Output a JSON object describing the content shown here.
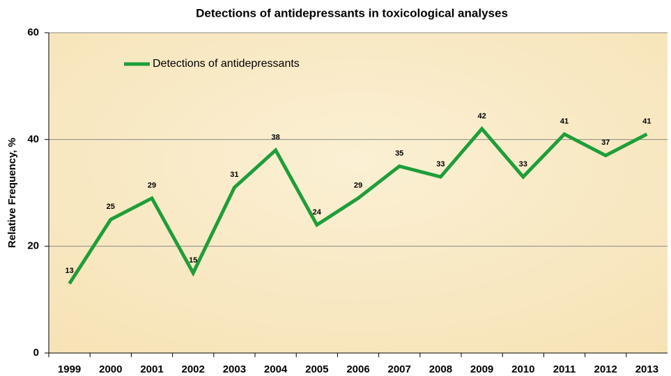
{
  "chart_data": {
    "type": "line",
    "title": "Detections of antidepressants in toxicological analyses",
    "y_label": "Relative Frequency, %",
    "categories": [
      "1999",
      "2000",
      "2001",
      "2002",
      "2003",
      "2004",
      "2005",
      "2006",
      "2007",
      "2008",
      "2009",
      "2010",
      "2011",
      "2012",
      "2013"
    ],
    "series": [
      {
        "name": "Detections of antidepressants",
        "color": "#1e9e3a",
        "values": [
          13,
          25,
          29,
          15,
          31,
          38,
          24,
          29,
          35,
          33,
          42,
          33,
          41,
          37,
          41
        ]
      }
    ],
    "ylim": [
      0,
      60
    ],
    "yticks": [
      0,
      20,
      40,
      60
    ],
    "grid": true,
    "legend": "top-left"
  }
}
